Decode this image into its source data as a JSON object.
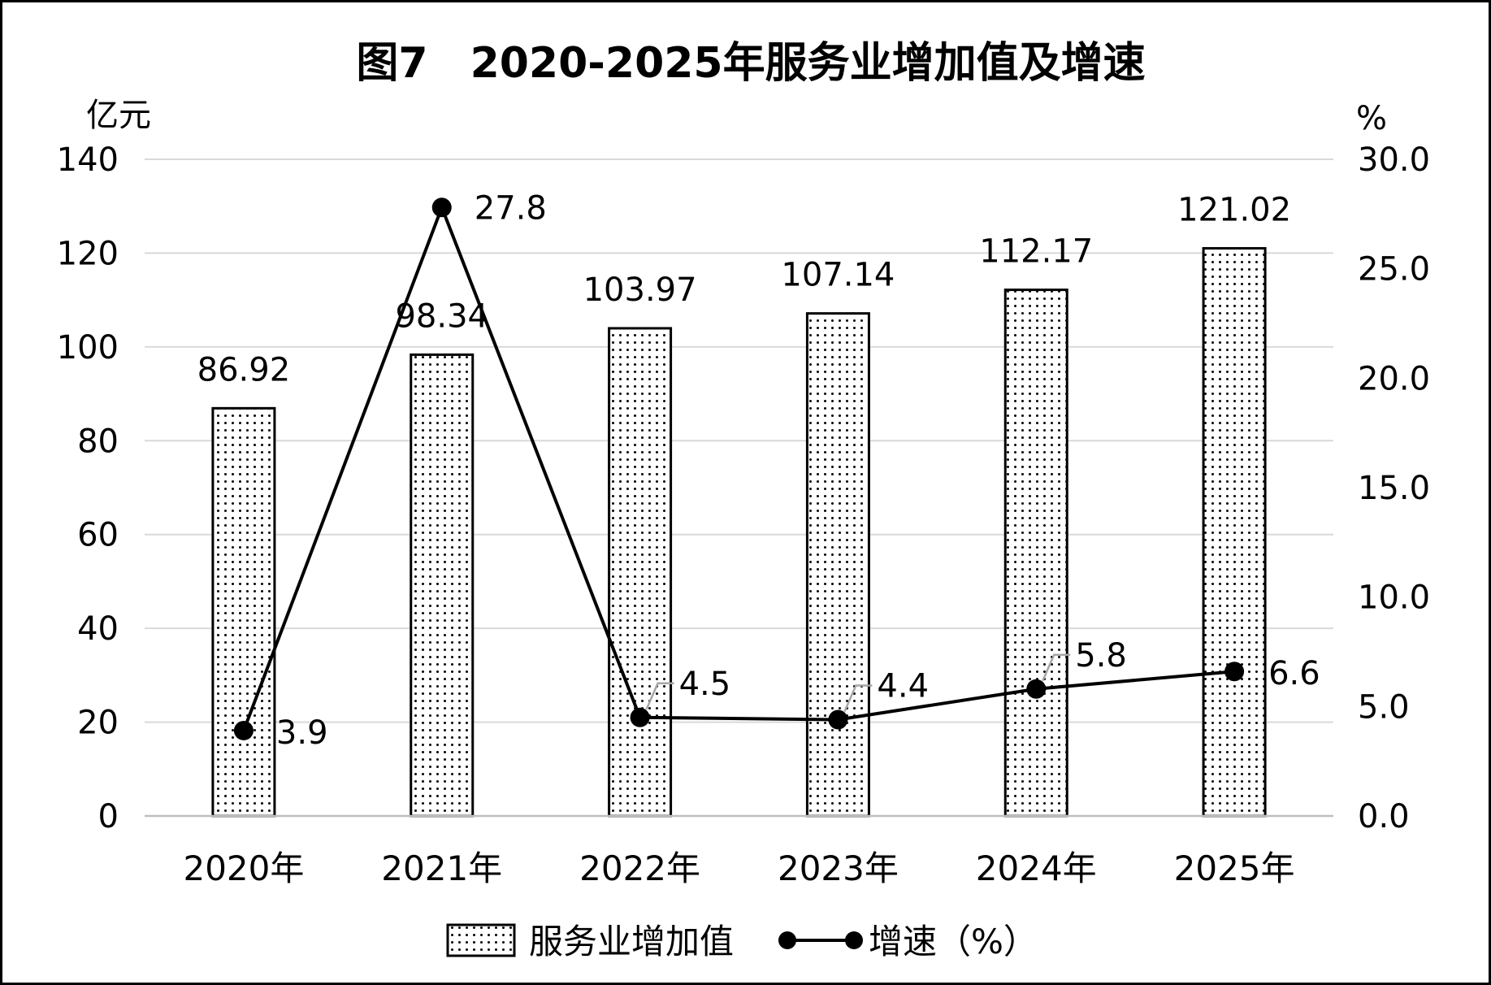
{
  "chart_data": {
    "type": "bar+line",
    "title": "图7　2020-2025年服务业增加值及增速",
    "categories": [
      "2020年",
      "2021年",
      "2022年",
      "2023年",
      "2024年",
      "2025年"
    ],
    "series": [
      {
        "name": "服务业增加值",
        "type": "bar",
        "axis": "left",
        "values": [
          86.92,
          98.34,
          103.97,
          107.14,
          112.17,
          121.02
        ],
        "labels": [
          "86.92",
          "98.34",
          "103.97",
          "107.14",
          "112.17",
          "121.02"
        ]
      },
      {
        "name": "增速（%）",
        "type": "line",
        "axis": "right",
        "values": [
          3.9,
          27.8,
          4.5,
          4.4,
          5.8,
          6.6
        ],
        "labels": [
          "3.9",
          "27.8",
          "4.5",
          "4.4",
          "5.8",
          "6.6"
        ]
      }
    ],
    "left_axis": {
      "unit": "亿元",
      "ylim": [
        0,
        140
      ],
      "ticks": [
        "0",
        "20",
        "40",
        "60",
        "80",
        "100",
        "120",
        "140"
      ]
    },
    "right_axis": {
      "unit": "%",
      "ylim": [
        0,
        30
      ],
      "ticks": [
        "0.0",
        "5.0",
        "10.0",
        "15.0",
        "20.0",
        "25.0",
        "30.0"
      ]
    },
    "grid": true,
    "legend_position": "bottom-center",
    "colors": {
      "line": "#000000",
      "bar_fill": "#ffffff",
      "bar_pattern": "#000000",
      "grid": "#d9d9d9"
    }
  }
}
